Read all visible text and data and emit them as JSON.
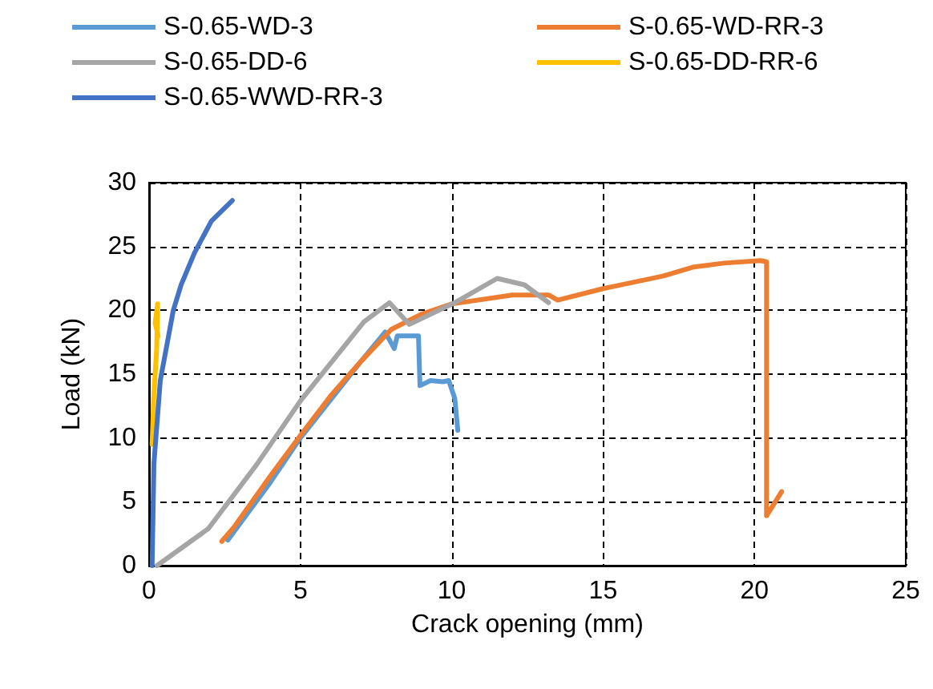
{
  "chart_data": {
    "type": "line",
    "xlabel": "Crack opening (mm)",
    "ylabel": "Load (kN)",
    "xlim": [
      0,
      25
    ],
    "xticks": [
      0,
      5,
      10,
      15,
      20,
      25
    ],
    "ylim": [
      0,
      30
    ],
    "yticks": [
      0,
      5,
      10,
      15,
      20,
      25,
      30
    ],
    "grid": true,
    "legend": "top",
    "marker": "none",
    "line_style": "solid",
    "series": [
      {
        "name": "S-0.65-WD-3",
        "color": "#5b9bd5",
        "x": [
          2.6,
          4,
          5,
          6,
          7,
          7.8,
          8.1,
          8.2,
          8.9,
          8.95,
          9.3,
          9.7,
          9.9,
          10.1,
          10.2
        ],
        "values": [
          2,
          6.5,
          10,
          13,
          16,
          18.3,
          17,
          18,
          18,
          14.1,
          14.5,
          14.4,
          14.5,
          13.1,
          10.6
        ]
      },
      {
        "name": "S-0.65-WD-RR-3",
        "color": "#ed7d31",
        "x": [
          2.4,
          2.8,
          4,
          5,
          6,
          7,
          8,
          9,
          10,
          12,
          13.2,
          13.5,
          15,
          17,
          18,
          19,
          20.2,
          20.4,
          20.4,
          20.9
        ],
        "values": [
          1.9,
          3,
          7,
          10.2,
          13.3,
          16,
          18.5,
          19.7,
          20.5,
          21.2,
          21.2,
          20.8,
          21.7,
          22.7,
          23.4,
          23.7,
          23.9,
          23.8,
          3.9,
          5.8
        ]
      },
      {
        "name": "S-0.65-DD-6",
        "color": "#a5a5a5",
        "x": [
          0.26,
          1.96,
          3.55,
          5,
          7.1,
          7.94,
          8.6,
          10.1,
          11.5,
          12.4,
          13.2
        ],
        "values": [
          0,
          2.9,
          7.9,
          12.9,
          19.1,
          20.6,
          18.9,
          20.6,
          22.5,
          22,
          20.6
        ]
      },
      {
        "name": "S-0.65-DD-RR-6",
        "color": "#ffc000",
        "x": [
          0.1,
          0.15,
          0.25,
          0.28,
          0.2,
          0.3
        ],
        "values": [
          9.5,
          13,
          17,
          20.5,
          19,
          18
        ]
      },
      {
        "name": "S-0.65-WWD-RR-3",
        "color": "#4472c4",
        "x": [
          0.1,
          0.16,
          0.37,
          0.8,
          1.06,
          1.5,
          2.06,
          2.75
        ],
        "values": [
          0,
          8,
          14.5,
          20,
          22,
          24.5,
          27,
          28.6
        ]
      }
    ]
  }
}
